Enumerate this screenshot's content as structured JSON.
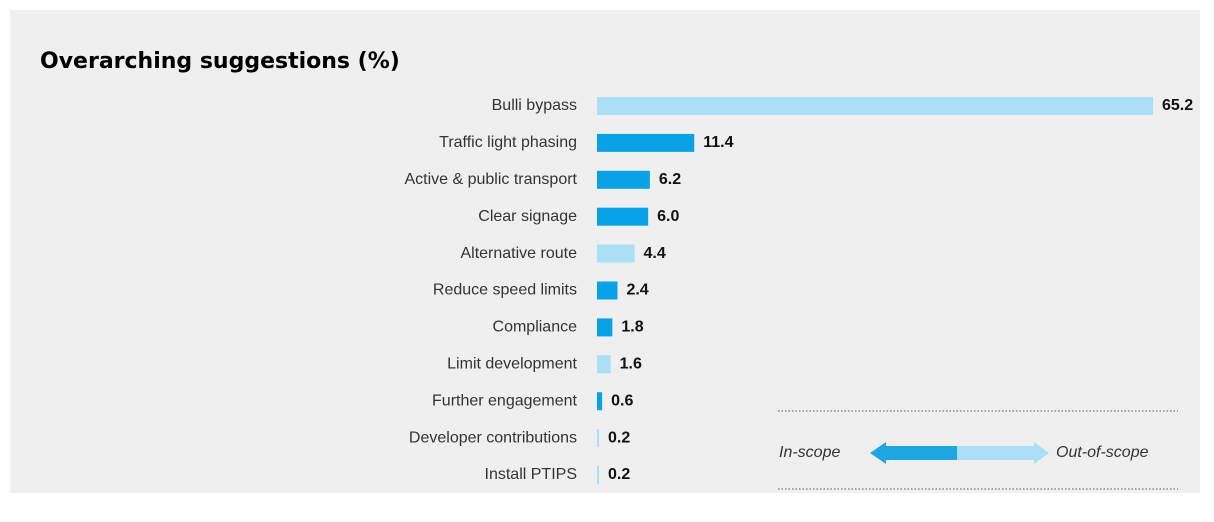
{
  "chart_data": {
    "type": "bar",
    "orientation": "horizontal",
    "title": "Overarching suggestions (%)",
    "categories": [
      "Bulli bypass",
      "Traffic light phasing",
      "Active & public transport",
      "Clear signage",
      "Alternative route",
      "Reduce speed limits",
      "Compliance",
      "Limit development",
      "Further engagement",
      "Developer contributions",
      "Install PTIPS"
    ],
    "values": [
      65.2,
      11.4,
      6.2,
      6.0,
      4.4,
      2.4,
      1.8,
      1.6,
      0.6,
      0.2,
      0.2
    ],
    "value_labels": [
      "65.2",
      "11.4",
      "6.2",
      "6.0",
      "4.4",
      "2.4",
      "1.8",
      "1.6",
      "0.6",
      "0.2",
      "0.2"
    ],
    "colors": [
      "#aadff7",
      "#0aa2e6",
      "#0aa2e6",
      "#0aa2e6",
      "#aadff7",
      "#0aa2e6",
      "#0aa2e6",
      "#aadff7",
      "#0aa2e6",
      "#aadff7",
      "#aadff7"
    ],
    "xlim": [
      0,
      65.2
    ],
    "legend": [
      {
        "label": "In-scope",
        "color": "#1ea6e0"
      },
      {
        "label": "Out-of-scope",
        "color": "#aadff7"
      }
    ]
  }
}
